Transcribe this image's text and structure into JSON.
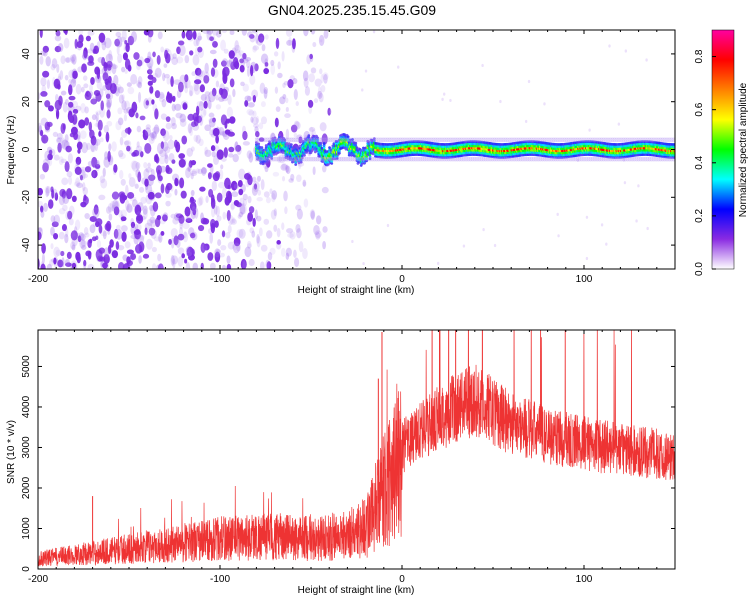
{
  "title": "GN04.2025.235.15.45.G09",
  "chart_data": [
    {
      "type": "heatmap",
      "xlabel": "Height of straight line (km)",
      "ylabel": "Frequency (Hz)",
      "xlim": [
        -200,
        150
      ],
      "ylim": [
        -50,
        50
      ],
      "x_ticks": [
        -200,
        -100,
        0,
        100
      ],
      "y_ticks": [
        -40,
        -20,
        0,
        20,
        40
      ],
      "colorbar": {
        "label": "Normalized spectral amplitude",
        "range": [
          0.0,
          0.9
        ],
        "ticks": [
          "0.0",
          "0.2",
          "0.4",
          "0.6",
          "0.8"
        ],
        "colors": [
          "#ffffff",
          "#8a2be2",
          "#0000ff",
          "#00ffff",
          "#00ff00",
          "#ffff00",
          "#ff8000",
          "#ff0000",
          "#ff00a0"
        ]
      },
      "regions": {
        "noise_band_x": [
          -200,
          -45
        ],
        "signal_start_x": -80,
        "signal_freq_center": 0,
        "signal_peak_amplitude": 0.85
      },
      "grid": false
    },
    {
      "type": "line",
      "xlabel": "Height of straight line (km)",
      "ylabel": "SNR (10 * v/v)",
      "xlim": [
        -200,
        150
      ],
      "ylim": [
        0,
        5900
      ],
      "x_ticks": [
        -200,
        -100,
        0,
        100
      ],
      "y_ticks": [
        0,
        1000,
        2000,
        3000,
        4000,
        5000
      ],
      "color": "#ee3333",
      "anchors": {
        "x": [
          -200,
          -180,
          -150,
          -120,
          -100,
          -80,
          -60,
          -45,
          -30,
          -20,
          -12,
          -5,
          0,
          10,
          20,
          30,
          40,
          50,
          60,
          80,
          100,
          120,
          140,
          150
        ],
        "y": [
          250,
          350,
          500,
          650,
          750,
          800,
          780,
          750,
          850,
          1050,
          1700,
          2400,
          3000,
          3400,
          3700,
          4000,
          4150,
          3900,
          3600,
          3300,
          3100,
          2950,
          2850,
          2750
        ]
      },
      "spikes": [
        {
          "x": -11,
          "y": 5850
        },
        {
          "x": -13,
          "y": 4700
        },
        {
          "x": 37,
          "y": 5000
        },
        {
          "x": -170,
          "y": 1800
        }
      ],
      "grid": false
    }
  ]
}
